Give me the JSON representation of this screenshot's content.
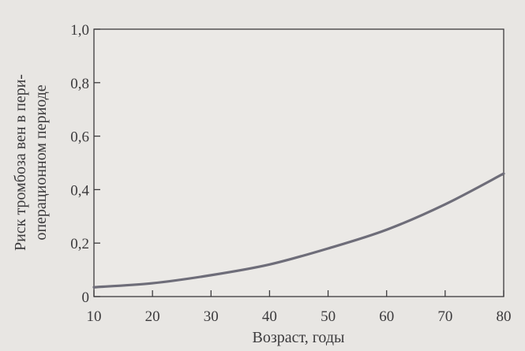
{
  "chart_data": {
    "type": "line",
    "xlabel": "Возраст, годы",
    "ylabel_lines": [
      "Риск тромбоза вен в пери-",
      "операционном периоде"
    ],
    "xlim": [
      10,
      80
    ],
    "ylim": [
      0,
      1.0
    ],
    "x_ticks": [
      "10",
      "20",
      "30",
      "40",
      "50",
      "60",
      "70",
      "80"
    ],
    "y_ticks": [
      "0",
      "0,2",
      "0,4",
      "0,6",
      "0,8",
      "1,0"
    ],
    "grid": false,
    "series": [
      {
        "x": [
          10,
          20,
          30,
          40,
          50,
          60,
          70,
          80
        ],
        "values": [
          0.035,
          0.05,
          0.08,
          0.12,
          0.18,
          0.25,
          0.345,
          0.46
        ]
      }
    ],
    "colors": {
      "line": "#6e6d79",
      "axis": "#3c3b3d",
      "background": "#e8e6e3"
    }
  }
}
